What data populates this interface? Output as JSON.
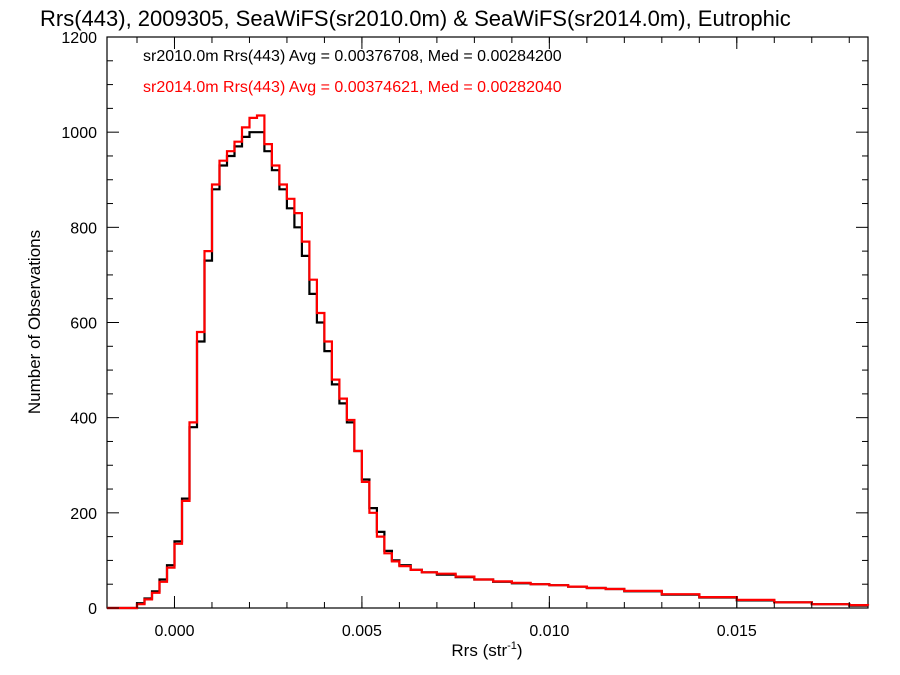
{
  "chart_data": {
    "type": "line",
    "title": "Rrs(443), 2009305, SeaWiFS(sr2010.0m) & SeaWiFS(sr2014.0m), Eutrophic",
    "xlabel": "Rrs (str",
    "xlabel_sup": "-1",
    "xlabel_close": ")",
    "ylabel": "Number of Observations",
    "xlim": [
      -0.0018,
      0.0185
    ],
    "ylim": [
      0,
      1200
    ],
    "xticks": [
      0.0,
      0.005,
      0.01,
      0.015
    ],
    "xtick_labels": [
      "0.000",
      "0.005",
      "0.010",
      "0.015"
    ],
    "yticks": [
      0,
      200,
      400,
      600,
      800,
      1000,
      1200
    ],
    "ytick_labels": [
      "0",
      "200",
      "400",
      "600",
      "800",
      "1000",
      "1200"
    ],
    "grid": false,
    "legend_placement": "top-left",
    "series": [
      {
        "name": "sr2010.0m",
        "legend": "sr2010.0m Rrs(443) Avg = 0.00376708, Med = 0.00284200",
        "color": "#000000",
        "x": [
          -0.0018,
          -0.0012,
          -0.001,
          -0.0008,
          -0.0006,
          -0.0004,
          -0.0002,
          0.0,
          0.0002,
          0.0004,
          0.0006,
          0.0008,
          0.001,
          0.0012,
          0.0014,
          0.0016,
          0.0018,
          0.002,
          0.0022,
          0.0024,
          0.0026,
          0.0028,
          0.003,
          0.0032,
          0.0034,
          0.0036,
          0.0038,
          0.004,
          0.0042,
          0.0044,
          0.0046,
          0.0048,
          0.005,
          0.0052,
          0.0054,
          0.0056,
          0.0058,
          0.006,
          0.0063,
          0.0066,
          0.007,
          0.0075,
          0.008,
          0.0085,
          0.009,
          0.0095,
          0.01,
          0.0105,
          0.011,
          0.0115,
          0.012,
          0.013,
          0.014,
          0.015,
          0.016,
          0.017,
          0.018,
          0.0185
        ],
        "y": [
          0,
          0,
          10,
          20,
          35,
          60,
          90,
          140,
          230,
          380,
          560,
          730,
          880,
          930,
          950,
          970,
          990,
          1000,
          1000,
          960,
          920,
          880,
          840,
          800,
          740,
          660,
          600,
          540,
          470,
          430,
          390,
          330,
          270,
          210,
          160,
          120,
          100,
          90,
          80,
          75,
          70,
          65,
          60,
          55,
          52,
          50,
          48,
          45,
          42,
          40,
          35,
          28,
          22,
          16,
          12,
          8,
          5,
          5
        ]
      },
      {
        "name": "sr2014.0m",
        "legend": "sr2014.0m Rrs(443) Avg = 0.00374621, Med = 0.00282040",
        "color": "#ff0000",
        "x": [
          -0.0018,
          -0.0012,
          -0.001,
          -0.0008,
          -0.0006,
          -0.0004,
          -0.0002,
          0.0,
          0.0002,
          0.0004,
          0.0006,
          0.0008,
          0.001,
          0.0012,
          0.0014,
          0.0016,
          0.0018,
          0.002,
          0.0022,
          0.0024,
          0.0026,
          0.0028,
          0.003,
          0.0032,
          0.0034,
          0.0036,
          0.0038,
          0.004,
          0.0042,
          0.0044,
          0.0046,
          0.0048,
          0.005,
          0.0052,
          0.0054,
          0.0056,
          0.0058,
          0.006,
          0.0063,
          0.0066,
          0.007,
          0.0075,
          0.008,
          0.0085,
          0.009,
          0.0095,
          0.01,
          0.0105,
          0.011,
          0.0115,
          0.012,
          0.013,
          0.014,
          0.015,
          0.016,
          0.017,
          0.018,
          0.0185
        ],
        "y": [
          0,
          0,
          8,
          18,
          32,
          55,
          85,
          135,
          225,
          390,
          580,
          750,
          890,
          940,
          960,
          980,
          1010,
          1030,
          1035,
          975,
          930,
          890,
          860,
          830,
          770,
          690,
          620,
          560,
          480,
          440,
          395,
          330,
          265,
          200,
          150,
          115,
          98,
          88,
          80,
          75,
          72,
          66,
          60,
          56,
          53,
          50,
          48,
          45,
          42,
          40,
          36,
          29,
          23,
          17,
          12,
          8,
          6,
          5
        ]
      }
    ]
  }
}
